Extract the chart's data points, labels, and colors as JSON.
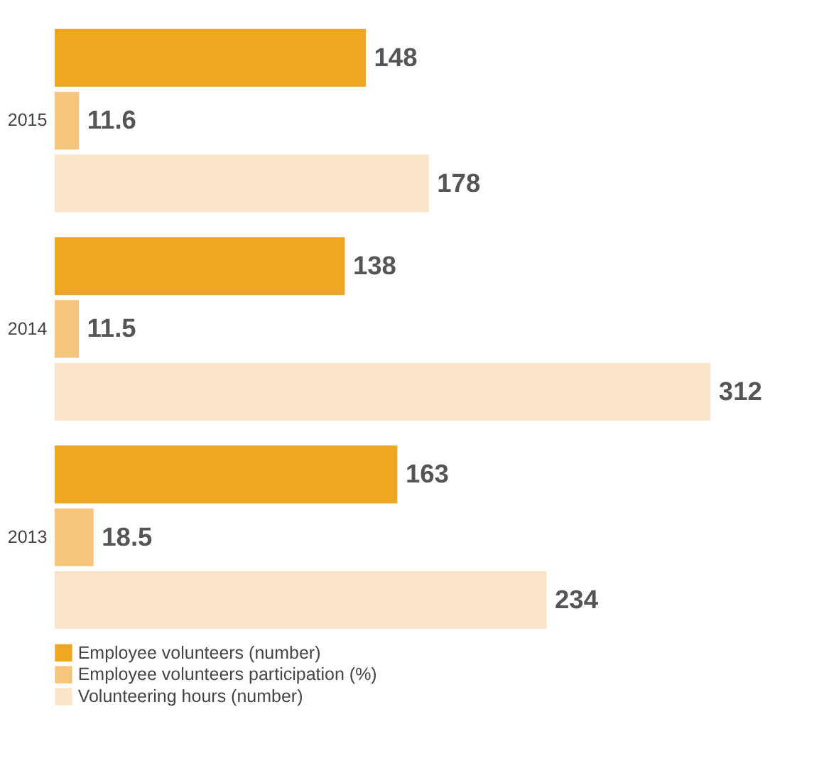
{
  "chart_data": {
    "type": "bar",
    "orientation": "horizontal",
    "categories": [
      "2015",
      "2014",
      "2013"
    ],
    "series": [
      {
        "name": "Employee volunteers (number)",
        "color": "#eea623",
        "values": [
          148,
          138,
          163
        ]
      },
      {
        "name": "Employee volunteers participation (%)",
        "color": "#f5c57e",
        "values": [
          11.6,
          11.5,
          18.5
        ]
      },
      {
        "name": "Volunteering hours (number)",
        "color": "#fae5c9",
        "values": [
          178,
          312,
          234
        ]
      }
    ],
    "data_labels": true,
    "legend": "bottom",
    "grid": false,
    "tick_labels": "y"
  }
}
